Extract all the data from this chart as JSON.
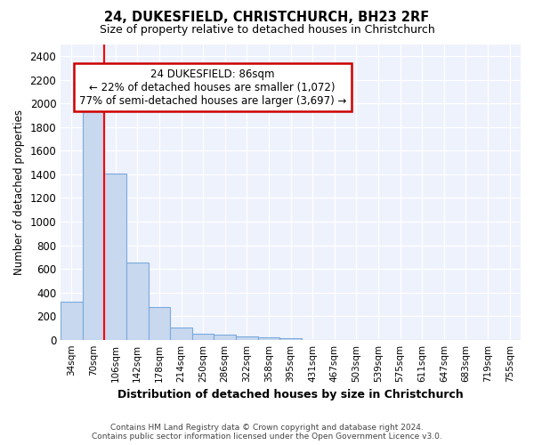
{
  "title1": "24, DUKESFIELD, CHRISTCHURCH, BH23 2RF",
  "title2": "Size of property relative to detached houses in Christchurch",
  "xlabel": "Distribution of detached houses by size in Christchurch",
  "ylabel": "Number of detached properties",
  "categories": [
    "34sqm",
    "70sqm",
    "106sqm",
    "142sqm",
    "178sqm",
    "214sqm",
    "250sqm",
    "286sqm",
    "322sqm",
    "358sqm",
    "395sqm",
    "431sqm",
    "467sqm",
    "503sqm",
    "539sqm",
    "575sqm",
    "611sqm",
    "647sqm",
    "683sqm",
    "719sqm",
    "755sqm"
  ],
  "values": [
    325,
    1980,
    1410,
    650,
    275,
    100,
    50,
    40,
    30,
    20,
    15,
    0,
    0,
    0,
    0,
    0,
    0,
    0,
    0,
    0,
    0
  ],
  "bar_color": "#c8d8ee",
  "bar_edge_color": "#7aaadd",
  "red_line_x": 1.5,
  "ylim": [
    0,
    2500
  ],
  "yticks": [
    0,
    200,
    400,
    600,
    800,
    1000,
    1200,
    1400,
    1600,
    1800,
    2000,
    2200,
    2400
  ],
  "annotation_line1": "24 DUKESFIELD: 86sqm",
  "annotation_line2": "← 22% of detached houses are smaller (1,072)",
  "annotation_line3": "77% of semi-detached houses are larger (3,697) →",
  "annotation_box_color": "#ffffff",
  "annotation_box_edge": "#cc0000",
  "footer1": "Contains HM Land Registry data © Crown copyright and database right 2024.",
  "footer2": "Contains public sector information licensed under the Open Government Licence v3.0.",
  "bg_color": "#ffffff",
  "plot_bg_color": "#eef2fc"
}
